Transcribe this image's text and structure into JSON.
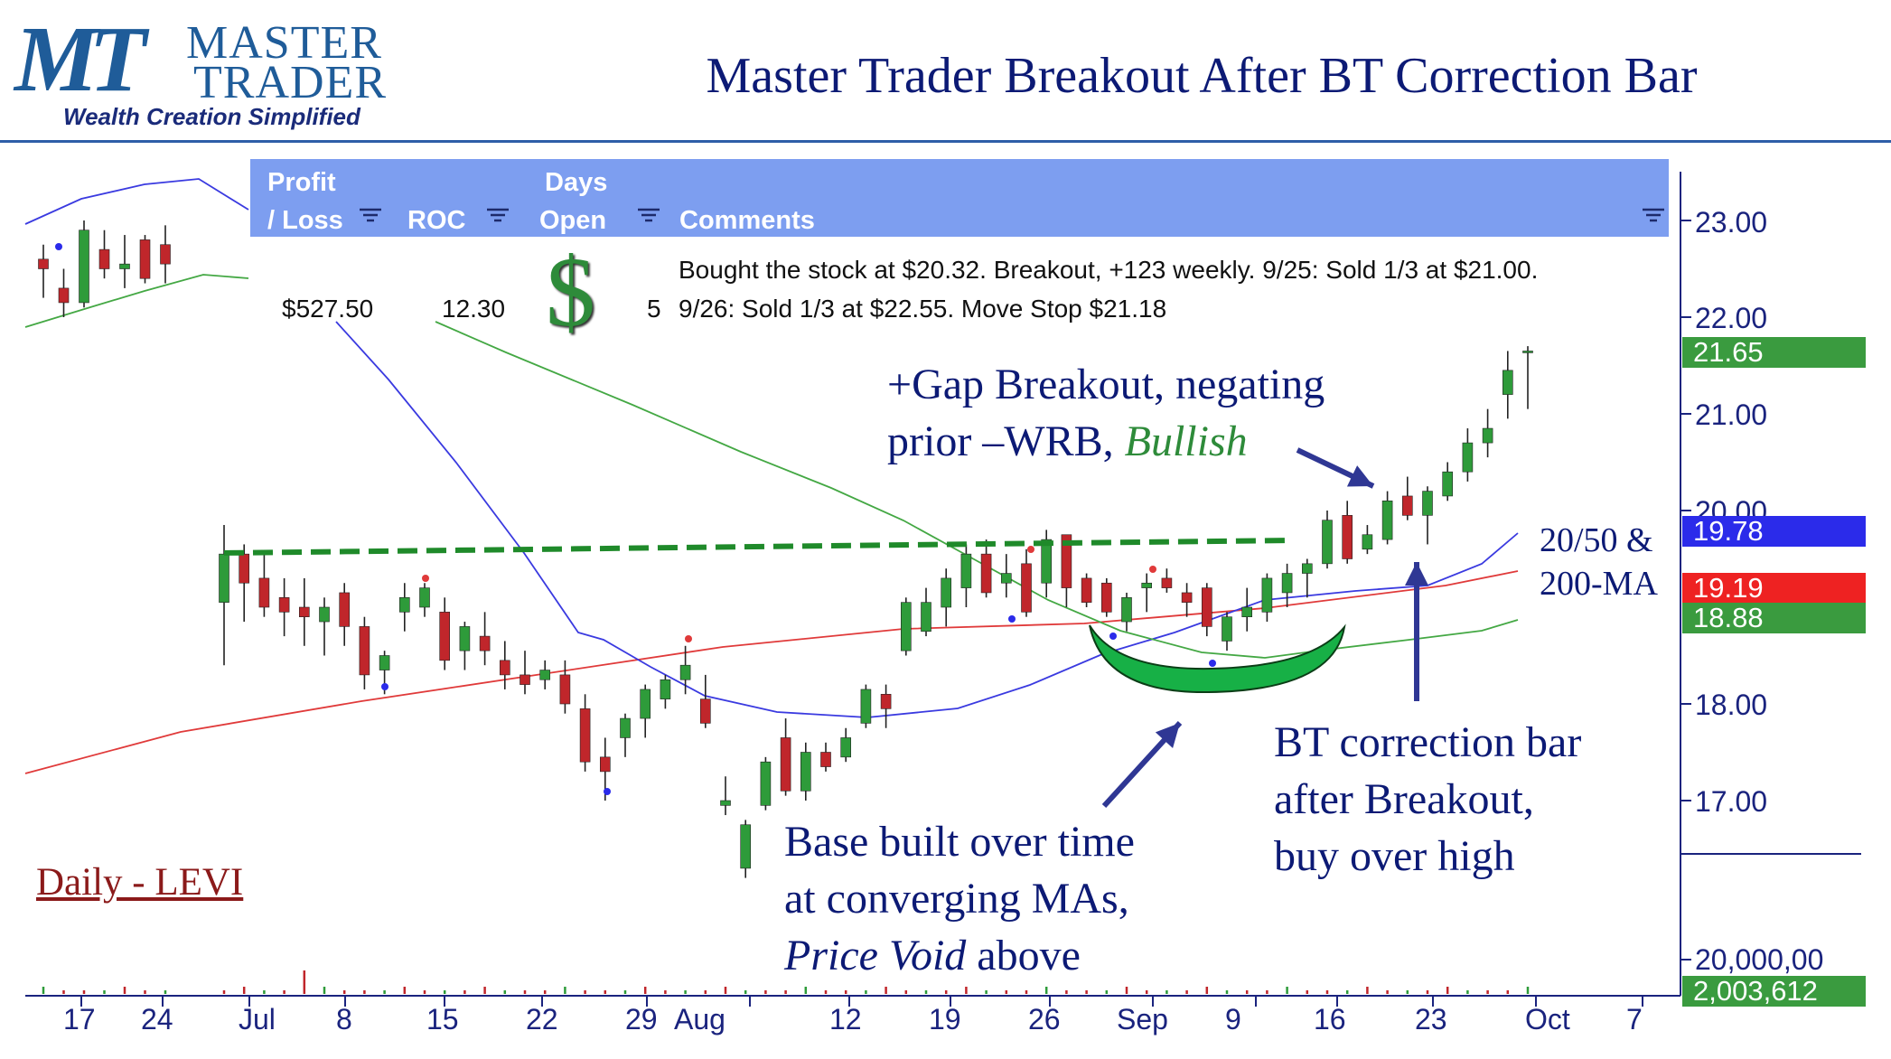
{
  "logo": {
    "mark": "MT",
    "line1": "MASTER",
    "line2": "TRADER",
    "tagline": "Wealth Creation Simplified"
  },
  "title": "Master Trader Breakout After BT Correction Bar",
  "table": {
    "headers": {
      "profit": [
        "Profit",
        "/ Loss"
      ],
      "roc": "ROC",
      "days": [
        "Days",
        "Open"
      ],
      "comments": "Comments"
    },
    "row": {
      "profit": "$527.50",
      "roc": "12.30",
      "days": "5",
      "dollar": "$",
      "comment1": "Bought the stock at $20.32. Breakout, +123 weekly.  9/25: Sold 1/3 at $21.00.",
      "comment2": "9/26:  Sold 1/3 at $22.55.  Move Stop $21.18"
    }
  },
  "annotations": {
    "gap": [
      "+Gap Breakout, negating",
      "prior –WRB, ",
      "Bullish"
    ],
    "ma": [
      "20/50 &",
      "200-MA"
    ],
    "bt": [
      "BT correction bar",
      "after Breakout,",
      "buy over high"
    ],
    "base": [
      "Base built over time",
      "at converging MAs,",
      "Price Void",
      " above"
    ]
  },
  "chart_label": "Daily - LEVI",
  "colors": {
    "up": "#2e9b3a",
    "down": "#c0262b",
    "ma20": "#3a3ae0",
    "ma50": "#44a844",
    "ma200": "#e03a3a",
    "header": "#7d9ef0",
    "axis": "#1a237e"
  },
  "badges": {
    "ma20": "19.78",
    "close": "21.65",
    "ma200": "19.19",
    "ma50": "18.88",
    "volume": "2,003,612"
  },
  "chart_data": {
    "type": "candlestick",
    "title": "Master Trader Breakout After BT Correction Bar",
    "y_ticks": [
      "23.00",
      "22.00",
      "21.00",
      "20.00",
      "18.00",
      "17.00"
    ],
    "volume_tick": "20,000,00",
    "x_ticks": [
      "17",
      "24",
      "Jul",
      "8",
      "15",
      "22",
      "29",
      "Aug",
      "12",
      "19",
      "26",
      "Sep",
      "9",
      "16",
      "23",
      "Oct",
      "7"
    ],
    "ylim": [
      15.5,
      23.5
    ],
    "candles": [
      {
        "o": 22.6,
        "h": 22.75,
        "l": 22.2,
        "c": 22.5
      },
      {
        "o": 22.3,
        "h": 22.5,
        "l": 22.0,
        "c": 22.15
      },
      {
        "o": 22.15,
        "h": 23.0,
        "l": 22.1,
        "c": 22.9
      },
      {
        "o": 22.7,
        "h": 22.9,
        "l": 22.4,
        "c": 22.5
      },
      {
        "o": 22.5,
        "h": 22.85,
        "l": 22.3,
        "c": 22.55
      },
      {
        "o": 22.8,
        "h": 22.85,
        "l": 22.35,
        "c": 22.4
      },
      {
        "o": 22.75,
        "h": 22.95,
        "l": 22.35,
        "c": 22.55
      },
      {
        "o": 19.05,
        "h": 19.85,
        "l": 18.4,
        "c": 19.55
      },
      {
        "o": 19.55,
        "h": 19.65,
        "l": 18.85,
        "c": 19.25
      },
      {
        "o": 19.3,
        "h": 19.55,
        "l": 18.9,
        "c": 19.0
      },
      {
        "o": 19.1,
        "h": 19.3,
        "l": 18.7,
        "c": 18.95
      },
      {
        "o": 19.0,
        "h": 19.3,
        "l": 18.6,
        "c": 18.9
      },
      {
        "o": 18.85,
        "h": 19.1,
        "l": 18.5,
        "c": 19.0
      },
      {
        "o": 19.15,
        "h": 19.25,
        "l": 18.6,
        "c": 18.8
      },
      {
        "o": 18.8,
        "h": 18.9,
        "l": 18.15,
        "c": 18.3
      },
      {
        "o": 18.35,
        "h": 18.55,
        "l": 18.1,
        "c": 18.5
      },
      {
        "o": 18.95,
        "h": 19.25,
        "l": 18.75,
        "c": 19.1
      },
      {
        "o": 19.0,
        "h": 19.25,
        "l": 18.9,
        "c": 19.2
      },
      {
        "o": 18.95,
        "h": 19.1,
        "l": 18.35,
        "c": 18.45
      },
      {
        "o": 18.55,
        "h": 18.85,
        "l": 18.35,
        "c": 18.8
      },
      {
        "o": 18.7,
        "h": 18.95,
        "l": 18.4,
        "c": 18.55
      },
      {
        "o": 18.45,
        "h": 18.65,
        "l": 18.15,
        "c": 18.3
      },
      {
        "o": 18.3,
        "h": 18.55,
        "l": 18.1,
        "c": 18.2
      },
      {
        "o": 18.25,
        "h": 18.45,
        "l": 18.15,
        "c": 18.35
      },
      {
        "o": 18.3,
        "h": 18.45,
        "l": 17.9,
        "c": 18.0
      },
      {
        "o": 17.95,
        "h": 18.1,
        "l": 17.3,
        "c": 17.4
      },
      {
        "o": 17.45,
        "h": 17.65,
        "l": 17.0,
        "c": 17.3
      },
      {
        "o": 17.65,
        "h": 17.9,
        "l": 17.45,
        "c": 17.85
      },
      {
        "o": 17.85,
        "h": 18.2,
        "l": 17.65,
        "c": 18.15
      },
      {
        "o": 18.05,
        "h": 18.3,
        "l": 17.95,
        "c": 18.25
      },
      {
        "o": 18.25,
        "h": 18.6,
        "l": 18.1,
        "c": 18.4
      },
      {
        "o": 18.05,
        "h": 18.3,
        "l": 17.75,
        "c": 17.8
      },
      {
        "o": 16.95,
        "h": 17.25,
        "l": 16.85,
        "c": 17.0
      },
      {
        "o": 16.3,
        "h": 16.8,
        "l": 16.2,
        "c": 16.75
      },
      {
        "o": 16.95,
        "h": 17.45,
        "l": 16.9,
        "c": 17.4
      },
      {
        "o": 17.65,
        "h": 17.85,
        "l": 17.05,
        "c": 17.1
      },
      {
        "o": 17.1,
        "h": 17.6,
        "l": 17.0,
        "c": 17.5
      },
      {
        "o": 17.5,
        "h": 17.6,
        "l": 17.3,
        "c": 17.35
      },
      {
        "o": 17.45,
        "h": 17.75,
        "l": 17.4,
        "c": 17.65
      },
      {
        "o": 17.8,
        "h": 18.2,
        "l": 17.75,
        "c": 18.15
      },
      {
        "o": 18.1,
        "h": 18.2,
        "l": 17.75,
        "c": 17.95
      },
      {
        "o": 18.55,
        "h": 19.1,
        "l": 18.5,
        "c": 19.05
      },
      {
        "o": 18.75,
        "h": 19.2,
        "l": 18.7,
        "c": 19.05
      },
      {
        "o": 19.0,
        "h": 19.4,
        "l": 18.8,
        "c": 19.3
      },
      {
        "o": 19.2,
        "h": 19.65,
        "l": 19.0,
        "c": 19.55
      },
      {
        "o": 19.55,
        "h": 19.7,
        "l": 19.1,
        "c": 19.15
      },
      {
        "o": 19.25,
        "h": 19.55,
        "l": 19.1,
        "c": 19.35
      },
      {
        "o": 19.45,
        "h": 19.6,
        "l": 18.9,
        "c": 18.95
      },
      {
        "o": 19.25,
        "h": 19.8,
        "l": 19.1,
        "c": 19.7
      },
      {
        "o": 19.75,
        "h": 19.75,
        "l": 19.0,
        "c": 19.2
      },
      {
        "o": 19.3,
        "h": 19.35,
        "l": 19.0,
        "c": 19.05
      },
      {
        "o": 19.25,
        "h": 19.3,
        "l": 18.9,
        "c": 18.95
      },
      {
        "o": 18.85,
        "h": 19.15,
        "l": 18.75,
        "c": 19.1
      },
      {
        "o": 19.2,
        "h": 19.35,
        "l": 18.95,
        "c": 19.25
      },
      {
        "o": 19.3,
        "h": 19.4,
        "l": 19.15,
        "c": 19.2
      },
      {
        "o": 19.15,
        "h": 19.25,
        "l": 18.9,
        "c": 19.05
      },
      {
        "o": 19.2,
        "h": 19.25,
        "l": 18.7,
        "c": 18.8
      },
      {
        "o": 18.65,
        "h": 18.95,
        "l": 18.55,
        "c": 18.9
      },
      {
        "o": 18.9,
        "h": 19.2,
        "l": 18.75,
        "c": 19.0
      },
      {
        "o": 18.95,
        "h": 19.35,
        "l": 18.85,
        "c": 19.3
      },
      {
        "o": 19.15,
        "h": 19.45,
        "l": 19.0,
        "c": 19.35
      },
      {
        "o": 19.35,
        "h": 19.5,
        "l": 19.1,
        "c": 19.45
      },
      {
        "o": 19.45,
        "h": 20.0,
        "l": 19.4,
        "c": 19.9
      },
      {
        "o": 19.95,
        "h": 20.1,
        "l": 19.45,
        "c": 19.5
      },
      {
        "o": 19.6,
        "h": 19.85,
        "l": 19.55,
        "c": 19.75
      },
      {
        "o": 19.7,
        "h": 20.2,
        "l": 19.65,
        "c": 20.1
      },
      {
        "o": 20.15,
        "h": 20.35,
        "l": 19.9,
        "c": 19.95
      },
      {
        "o": 19.95,
        "h": 20.25,
        "l": 19.65,
        "c": 20.2
      },
      {
        "o": 20.15,
        "h": 20.5,
        "l": 20.1,
        "c": 20.4
      },
      {
        "o": 20.4,
        "h": 20.85,
        "l": 20.3,
        "c": 20.7
      },
      {
        "o": 20.7,
        "h": 21.05,
        "l": 20.55,
        "c": 20.85
      },
      {
        "o": 21.2,
        "h": 21.65,
        "l": 20.95,
        "c": 21.45
      },
      {
        "o": 21.65,
        "h": 21.7,
        "l": 21.05,
        "c": 21.65
      }
    ]
  }
}
